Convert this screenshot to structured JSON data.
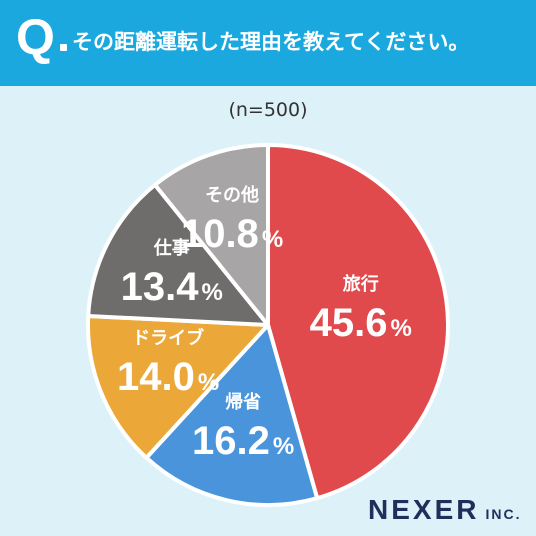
{
  "question": {
    "prefix": "Q",
    "text": "その距離運転した理由を教えてください。"
  },
  "sample": "(n=500)",
  "chart_data": {
    "type": "pie",
    "title": "",
    "unit": "%",
    "start_angle_deg": 0,
    "direction": "clockwise",
    "slices": [
      {
        "label": "旅行",
        "value": 45.6,
        "display": "45.6",
        "color": "#e04a4d"
      },
      {
        "label": "帰省",
        "value": 16.2,
        "display": "16.2",
        "color": "#4a94dc"
      },
      {
        "label": "ドライブ",
        "value": 14.0,
        "display": "14.0",
        "color": "#eba737"
      },
      {
        "label": "仕事",
        "value": 13.4,
        "display": "13.4",
        "color": "#6f6c6c"
      },
      {
        "label": "その他",
        "value": 10.8,
        "display": "10.8",
        "color": "#a7a5a5"
      }
    ]
  },
  "logo": {
    "brand": "NEXER",
    "suffix": "INC."
  }
}
